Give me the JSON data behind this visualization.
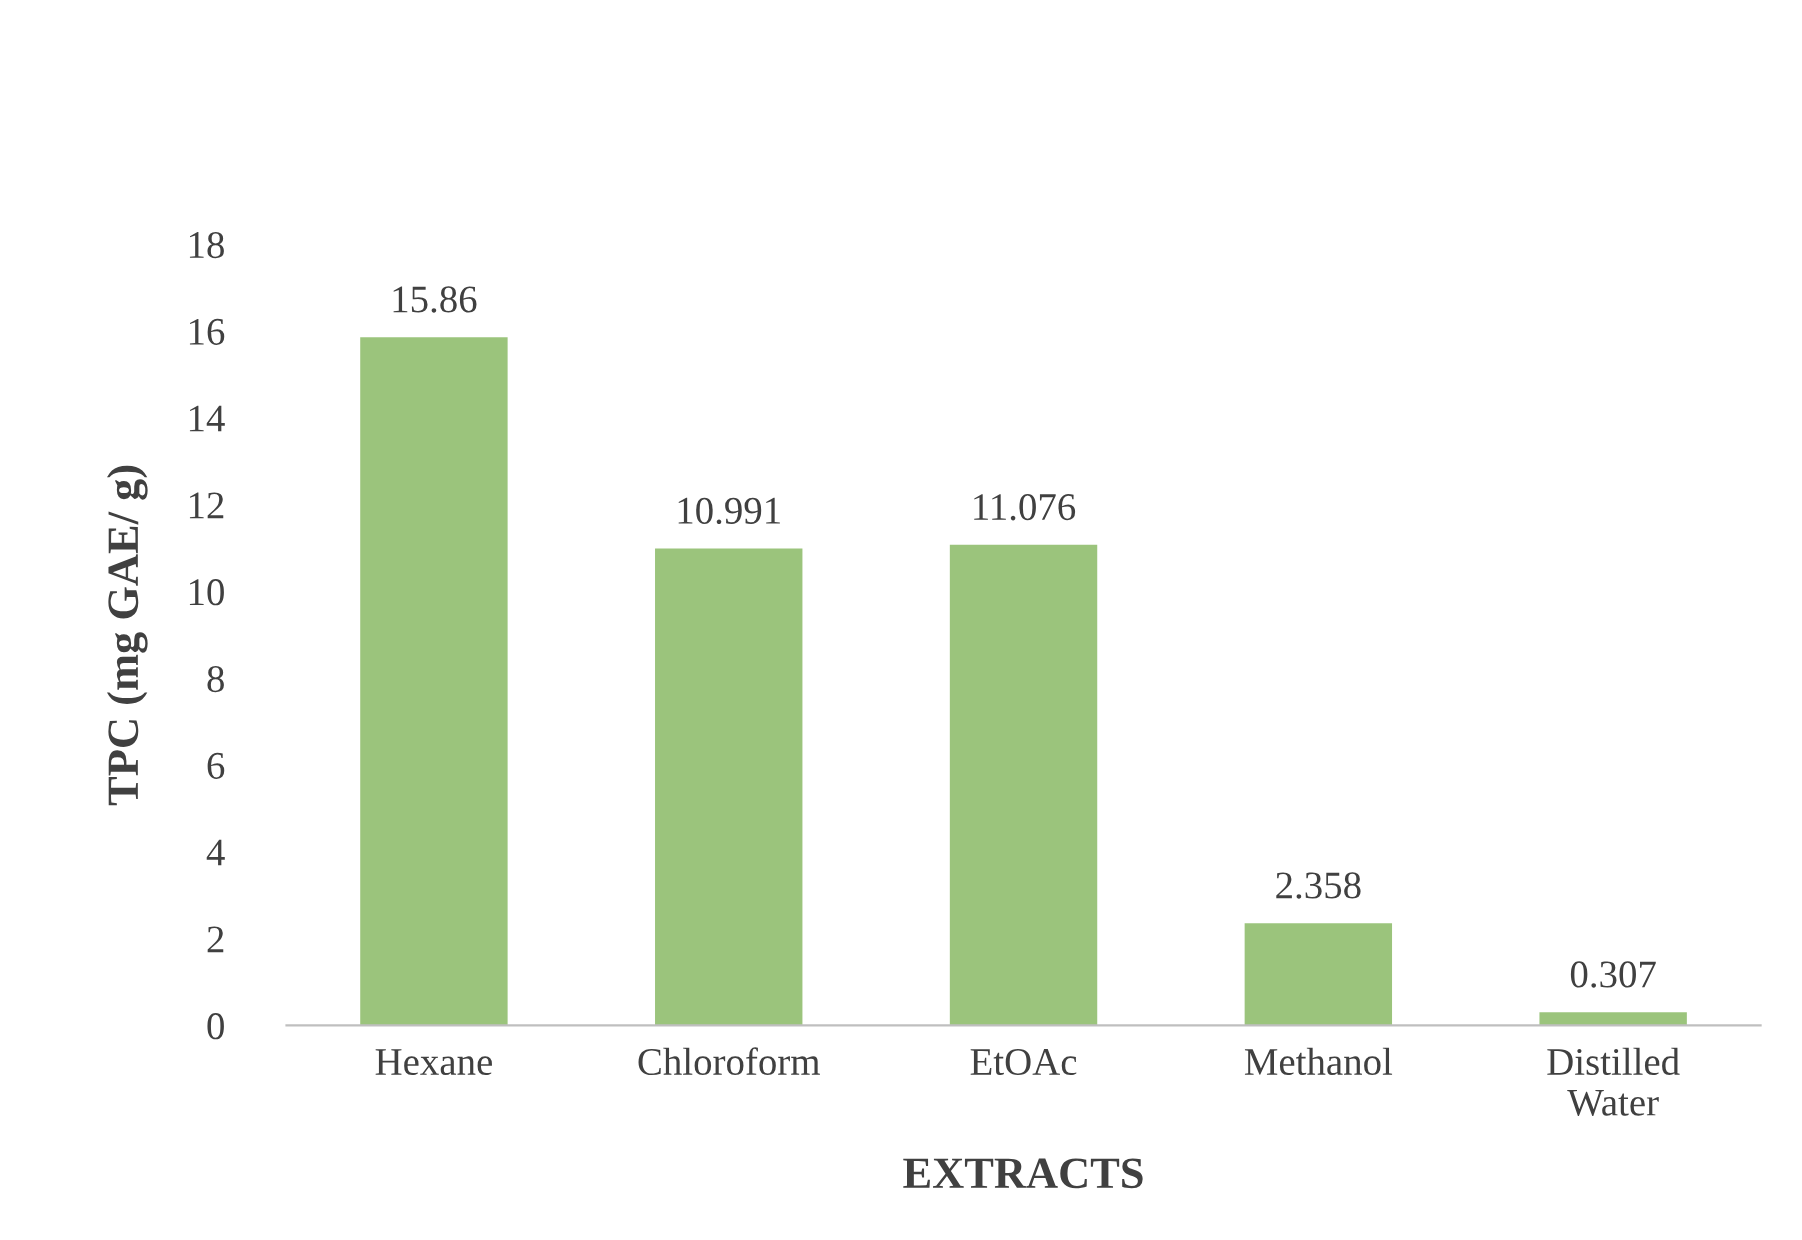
{
  "chart_data": {
    "type": "bar",
    "xlabel": "EXTRACTS",
    "ylabel": "TPC (mg GAE/ g)",
    "categories": [
      "Hexane",
      "Chloroform",
      "EtOAc",
      "Methanol",
      "Distilled Water"
    ],
    "values": [
      15.86,
      10.991,
      11.076,
      2.358,
      0.307
    ],
    "color": "#9bc47c",
    "ylim": [
      0,
      18
    ],
    "yticks": [
      0,
      2,
      4,
      6,
      8,
      10,
      12,
      14,
      16,
      18
    ],
    "data_labels": true,
    "grid": false,
    "legend": false
  }
}
